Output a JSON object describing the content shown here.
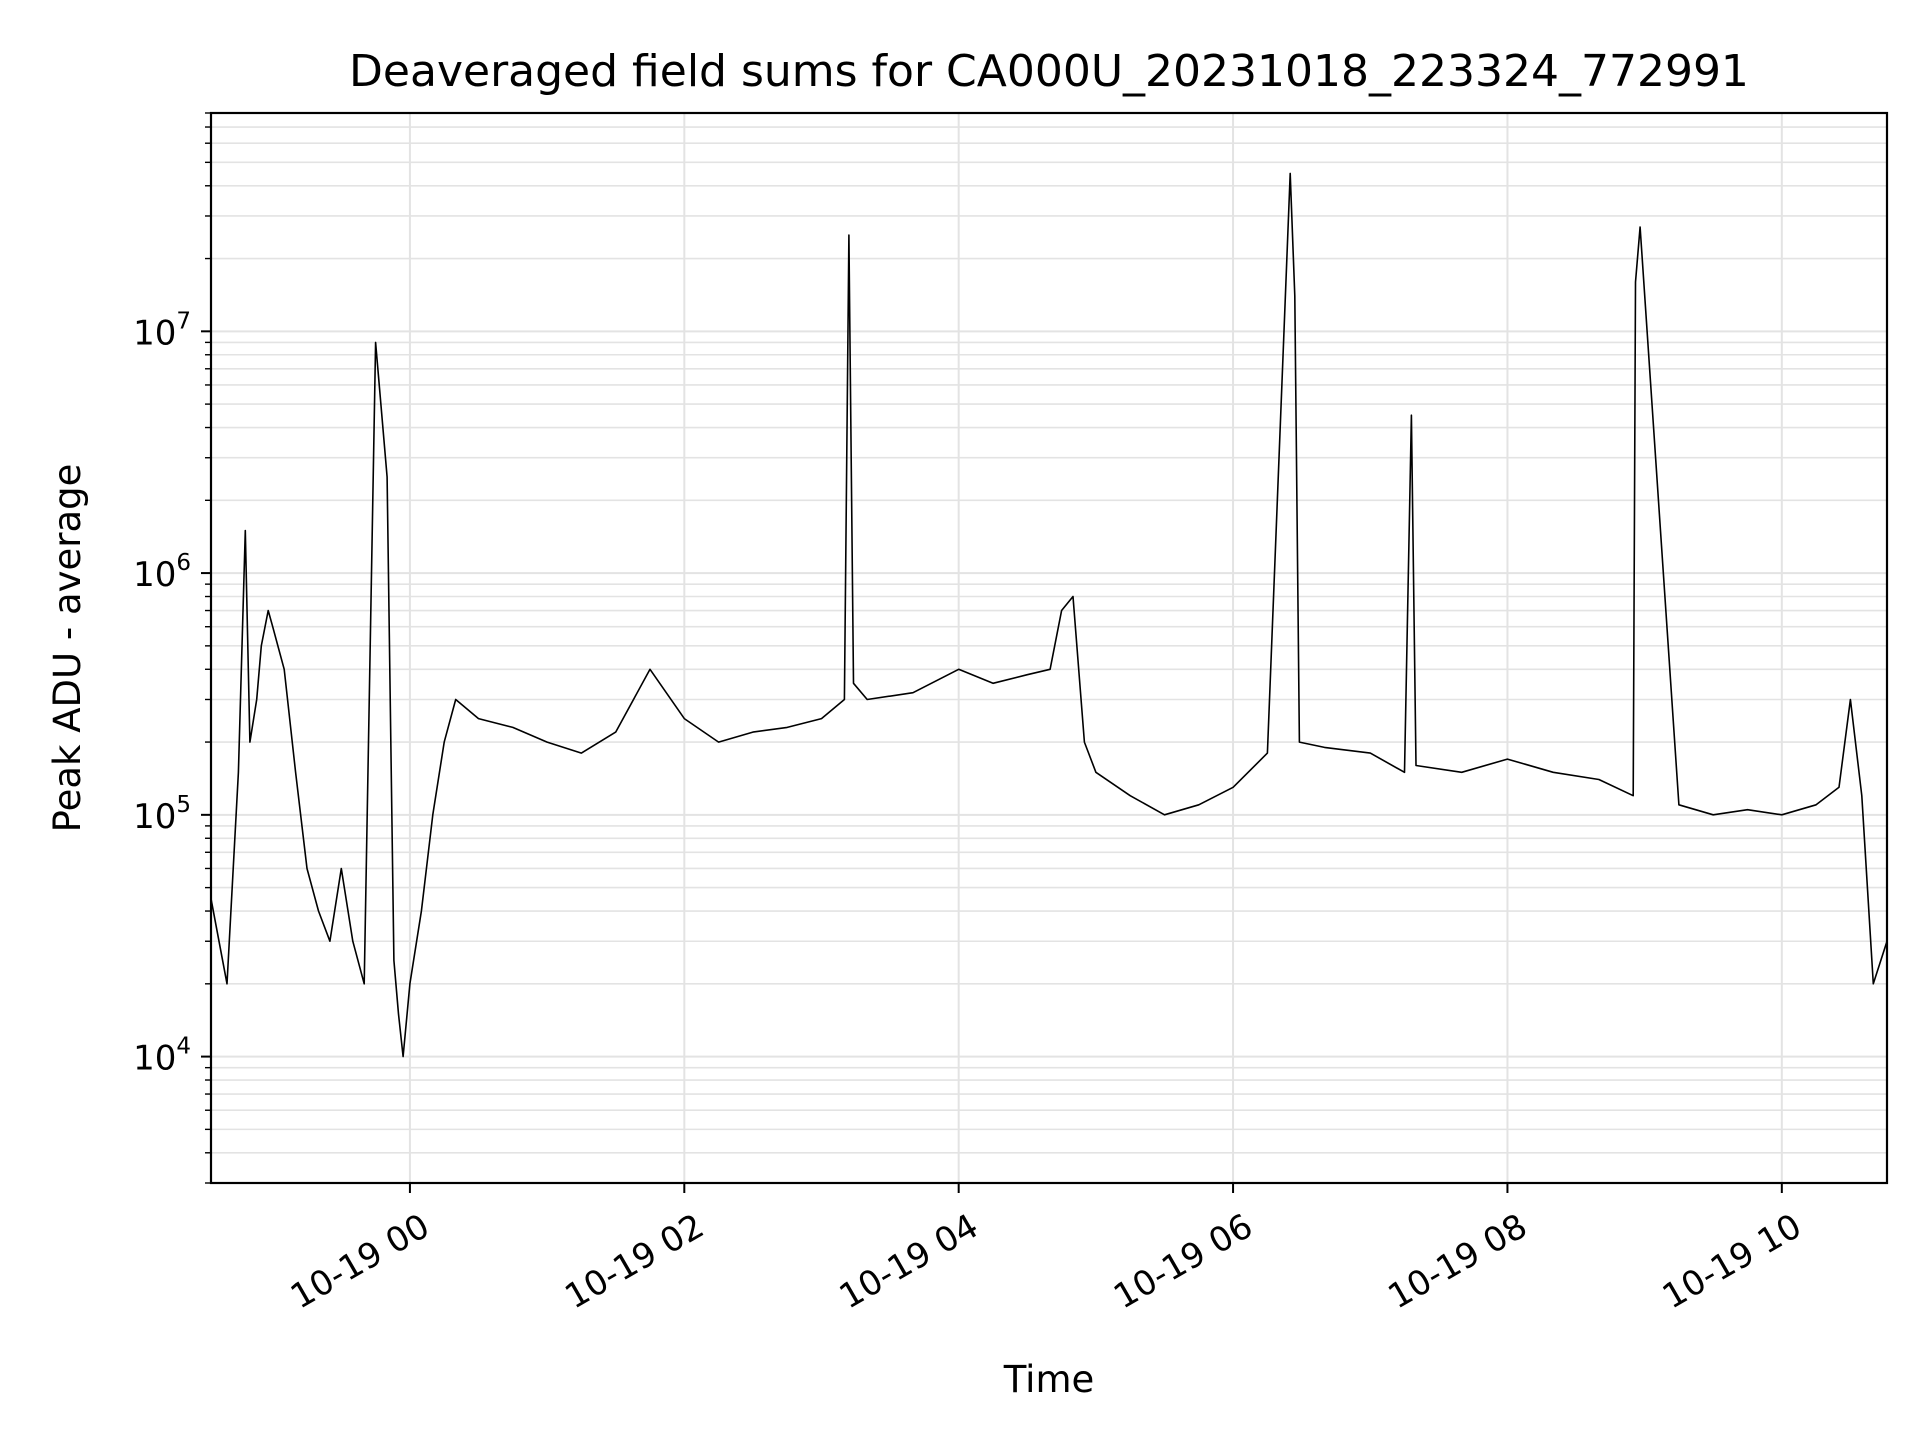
{
  "chart_data": {
    "type": "line",
    "title": "Deaveraged field sums for CA000U_20231018_223324_772991",
    "xlabel": "Time",
    "ylabel": "Peak ADU - average",
    "yscale": "log",
    "grid": true,
    "xlim": [
      "2023-10-18 22:33",
      "2023-10-19 10:46"
    ],
    "ylim": [
      3000,
      80000000
    ],
    "x_ticks": [
      "10-19 00",
      "10-19 02",
      "10-19 04",
      "10-19 06",
      "10-19 08",
      "10-19 10"
    ],
    "y_ticks": [
      {
        "base": "10",
        "exp": "4"
      },
      {
        "base": "10",
        "exp": "5"
      },
      {
        "base": "10",
        "exp": "6"
      },
      {
        "base": "10",
        "exp": "7"
      }
    ],
    "colors": {
      "line": "#000000",
      "grid": "#e3e3e3"
    },
    "series": [
      {
        "x": [
          "2023-10-18 22:33",
          "2023-10-18 22:40",
          "2023-10-18 22:45",
          "2023-10-18 22:48",
          "2023-10-18 22:50",
          "2023-10-18 22:53",
          "2023-10-18 22:55",
          "2023-10-18 22:58",
          "2023-10-18 23:00",
          "2023-10-18 23:05",
          "2023-10-18 23:10",
          "2023-10-18 23:15",
          "2023-10-18 23:20",
          "2023-10-18 23:25",
          "2023-10-18 23:30",
          "2023-10-18 23:35",
          "2023-10-18 23:40",
          "2023-10-18 23:45",
          "2023-10-18 23:50",
          "2023-10-18 23:53",
          "2023-10-18 23:55",
          "2023-10-18 23:57",
          "2023-10-19 00:00",
          "2023-10-19 00:05",
          "2023-10-19 00:10",
          "2023-10-19 00:15",
          "2023-10-19 00:20",
          "2023-10-19 00:30",
          "2023-10-19 00:45",
          "2023-10-19 01:00",
          "2023-10-19 01:15",
          "2023-10-19 01:30",
          "2023-10-19 01:45",
          "2023-10-19 02:00",
          "2023-10-19 02:15",
          "2023-10-19 02:30",
          "2023-10-19 02:45",
          "2023-10-19 03:00",
          "2023-10-19 03:10",
          "2023-10-19 03:12",
          "2023-10-19 03:14",
          "2023-10-19 03:20",
          "2023-10-19 03:40",
          "2023-10-19 04:00",
          "2023-10-19 04:15",
          "2023-10-19 04:30",
          "2023-10-19 04:40",
          "2023-10-19 04:45",
          "2023-10-19 04:50",
          "2023-10-19 04:55",
          "2023-10-19 05:00",
          "2023-10-19 05:15",
          "2023-10-19 05:30",
          "2023-10-19 05:45",
          "2023-10-19 06:00",
          "2023-10-19 06:15",
          "2023-10-19 06:25",
          "2023-10-19 06:27",
          "2023-10-19 06:29",
          "2023-10-19 06:40",
          "2023-10-19 07:00",
          "2023-10-19 07:15",
          "2023-10-19 07:18",
          "2023-10-19 07:20",
          "2023-10-19 07:40",
          "2023-10-19 08:00",
          "2023-10-19 08:20",
          "2023-10-19 08:40",
          "2023-10-19 08:55",
          "2023-10-19 08:56",
          "2023-10-19 08:58",
          "2023-10-19 09:15",
          "2023-10-19 09:30",
          "2023-10-19 09:45",
          "2023-10-19 10:00",
          "2023-10-19 10:15",
          "2023-10-19 10:25",
          "2023-10-19 10:30",
          "2023-10-19 10:35",
          "2023-10-19 10:40",
          "2023-10-19 10:46"
        ],
        "y": [
          45000,
          20000,
          150000,
          1500000,
          200000,
          300000,
          500000,
          700000,
          600000,
          400000,
          150000,
          60000,
          40000,
          30000,
          60000,
          30000,
          20000,
          9000000,
          2500000,
          25000,
          15000,
          10000,
          20000,
          40000,
          100000,
          200000,
          300000,
          250000,
          230000,
          200000,
          180000,
          220000,
          400000,
          250000,
          200000,
          220000,
          230000,
          250000,
          300000,
          25000000,
          350000,
          300000,
          320000,
          400000,
          350000,
          380000,
          400000,
          700000,
          800000,
          200000,
          150000,
          120000,
          100000,
          110000,
          130000,
          180000,
          45000000,
          14000000,
          200000,
          190000,
          180000,
          150000,
          4500000,
          160000,
          150000,
          170000,
          150000,
          140000,
          120000,
          16000000,
          27000000,
          110000,
          100000,
          105000,
          100000,
          110000,
          130000,
          300000,
          120000,
          20000,
          30000
        ]
      }
    ]
  }
}
